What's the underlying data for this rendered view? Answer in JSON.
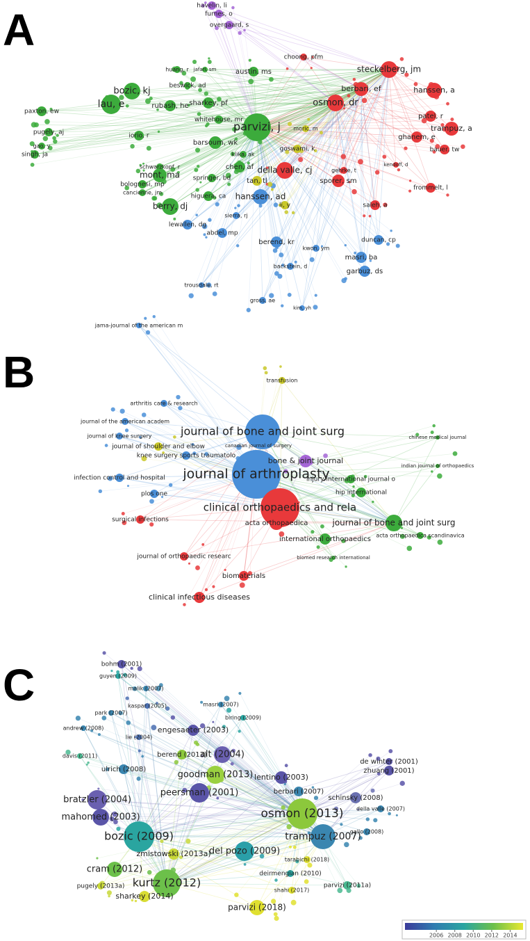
{
  "panels": [
    {
      "letter": "A",
      "nodes": [
        {
          "label": "parvizi, j",
          "color": "#3cab3c"
        },
        {
          "label": "osmon, dr",
          "color": "#e8393b"
        },
        {
          "label": "steckelberg, jm",
          "color": "#e8393b"
        },
        {
          "label": "berbari, ef",
          "color": "#e8393b"
        },
        {
          "label": "hanssen, a",
          "color": "#e8393b"
        },
        {
          "label": "patel, r",
          "color": "#e8393b"
        },
        {
          "label": "trampuz, a",
          "color": "#e8393b"
        },
        {
          "label": "ghanem, e",
          "color": "#e8393b"
        },
        {
          "label": "bauer, tw",
          "color": "#e8393b"
        },
        {
          "label": "della valle, cj",
          "color": "#e8393b"
        },
        {
          "label": "sporer, sm",
          "color": "#e8393b"
        },
        {
          "label": "frommelt, l",
          "color": "#e8393b"
        },
        {
          "label": "saleh, a",
          "color": "#e8393b"
        },
        {
          "label": "gehrke, t",
          "color": "#e8393b"
        },
        {
          "label": "kendoff, d",
          "color": "#e8393b"
        },
        {
          "label": "choong, pfm",
          "color": "#e8393b"
        },
        {
          "label": "bozic, kj",
          "color": "#3cab3c"
        },
        {
          "label": "lau, e",
          "color": "#3cab3c"
        },
        {
          "label": "paxton, ew",
          "color": "#3cab3c"
        },
        {
          "label": "rubash, he",
          "color": "#3cab3c"
        },
        {
          "label": "sharkey, pf",
          "color": "#3cab3c"
        },
        {
          "label": "whitehouse, mr",
          "color": "#3cab3c"
        },
        {
          "label": "barsoum, wk",
          "color": "#3cab3c"
        },
        {
          "label": "mont, ma",
          "color": "#3cab3c"
        },
        {
          "label": "berry, dj",
          "color": "#3cab3c"
        },
        {
          "label": "chen, af",
          "color": "#3cab3c"
        },
        {
          "label": "springer, bd",
          "color": "#3cab3c"
        },
        {
          "label": "higuera, ca",
          "color": "#3cab3c"
        },
        {
          "label": "austin, ms",
          "color": "#3cab3c"
        },
        {
          "label": "beswick, ad",
          "color": "#3cab3c"
        },
        {
          "label": "huang, r",
          "color": "#3cab3c"
        },
        {
          "label": "iorio, r",
          "color": "#3cab3c"
        },
        {
          "label": "pugely, aj",
          "color": "#3cab3c"
        },
        {
          "label": "singh, ja",
          "color": "#3cab3c"
        },
        {
          "label": "gao, y",
          "color": "#3cab3c"
        },
        {
          "label": "bolognesi, mp",
          "color": "#3cab3c"
        },
        {
          "label": "schwarzkopf, r",
          "color": "#3cab3c"
        },
        {
          "label": "cancienne, jm",
          "color": "#3cab3c"
        },
        {
          "label": "jafari, sm",
          "color": "#3cab3c"
        },
        {
          "label": "klika, ak",
          "color": "#3cab3c"
        },
        {
          "label": "hanssen, ad",
          "color": "#4a8fd8"
        },
        {
          "label": "lewallen, dg",
          "color": "#4a8fd8"
        },
        {
          "label": "abdel, mp",
          "color": "#4a8fd8"
        },
        {
          "label": "sierra, rj",
          "color": "#4a8fd8"
        },
        {
          "label": "berend, kr",
          "color": "#4a8fd8"
        },
        {
          "label": "duncan, cp",
          "color": "#4a8fd8"
        },
        {
          "label": "masri, ba",
          "color": "#4a8fd8"
        },
        {
          "label": "garbuz, ds",
          "color": "#4a8fd8"
        },
        {
          "label": "kwon, ym",
          "color": "#4a8fd8"
        },
        {
          "label": "backstein, d",
          "color": "#4a8fd8"
        },
        {
          "label": "trousdale, rt",
          "color": "#4a8fd8"
        },
        {
          "label": "gross, ae",
          "color": "#4a8fd8"
        },
        {
          "label": "kim, yh",
          "color": "#4a8fd8"
        },
        {
          "label": "tan, tl",
          "color": "#c9c82a"
        },
        {
          "label": "li, y",
          "color": "#c9c82a"
        },
        {
          "label": "goswami, k",
          "color": "#c9c82a"
        },
        {
          "label": "moric, m",
          "color": "#c9c82a"
        },
        {
          "label": "havelin, li",
          "color": "#a566d6"
        },
        {
          "label": "furnes, o",
          "color": "#a566d6"
        },
        {
          "label": "overgaard, s",
          "color": "#a566d6"
        }
      ]
    },
    {
      "letter": "B",
      "nodes": [
        {
          "label": "journal of arthroplasty",
          "color": "#4a8fd8"
        },
        {
          "label": "journal of bone and joint surg",
          "color": "#4a8fd8"
        },
        {
          "label": "clinical orthopaedics and rela",
          "color": "#e8393b"
        },
        {
          "label": "journal of bone and joint surg",
          "color": "#3cab3c"
        },
        {
          "label": "bone & joint journal",
          "color": "#a566d6"
        },
        {
          "label": "international orthopaedics",
          "color": "#3cab3c"
        },
        {
          "label": "hip international",
          "color": "#3cab3c"
        },
        {
          "label": "acta orthopaedica",
          "color": "#e8393b"
        },
        {
          "label": "biomaterials",
          "color": "#e8393b"
        },
        {
          "label": "clinical infectious diseases",
          "color": "#e8393b"
        },
        {
          "label": "journal of orthopaedic researc",
          "color": "#e8393b"
        },
        {
          "label": "infection control and hospital",
          "color": "#4a8fd8"
        },
        {
          "label": "surgical infections",
          "color": "#e8393b"
        },
        {
          "label": "journal of shoulder and elbow",
          "color": "#c9c82a"
        },
        {
          "label": "knee surgery sports traumatolo",
          "color": "#4a8fd8"
        },
        {
          "label": "journal of knee surgery",
          "color": "#4a8fd8"
        },
        {
          "label": "journal of the american academ",
          "color": "#4a8fd8"
        },
        {
          "label": "arthritis care & research",
          "color": "#4a8fd8"
        },
        {
          "label": "transfusion",
          "color": "#c9c82a"
        },
        {
          "label": "jama-journal of the american m",
          "color": "#4a8fd8"
        },
        {
          "label": "injury-international journal o",
          "color": "#3cab3c"
        },
        {
          "label": "acta orthopaedica scandinavica",
          "color": "#3cab3c"
        },
        {
          "label": "plos one",
          "color": "#4a8fd8"
        },
        {
          "label": "canadian journal of surgery",
          "color": "#4a8fd8"
        },
        {
          "label": "indian journal of orthopaedics",
          "color": "#3cab3c"
        },
        {
          "label": "chinese medical journal",
          "color": "#3cab3c"
        },
        {
          "label": "biomed research international",
          "color": "#3cab3c"
        }
      ]
    },
    {
      "letter": "C",
      "nodes": [
        {
          "label": "osmon (2013)",
          "color": "#8cc83c"
        },
        {
          "label": "bozic (2009)",
          "color": "#2aa5a0"
        },
        {
          "label": "kurtz (2012)",
          "color": "#6cc04a"
        },
        {
          "label": "trampuz (2007)",
          "color": "#3a86b0"
        },
        {
          "label": "del pozo (2009)",
          "color": "#2a9fa8"
        },
        {
          "label": "peersman (2001)",
          "color": "#5a55a8"
        },
        {
          "label": "goodman (2013)",
          "color": "#9ad040"
        },
        {
          "label": "alt (2004)",
          "color": "#6a60b0"
        },
        {
          "label": "bratzler (2004)",
          "color": "#6a60b0"
        },
        {
          "label": "mahomed (2003)",
          "color": "#5a55a8"
        },
        {
          "label": "cram (2012)",
          "color": "#6cc04a"
        },
        {
          "label": "parvizi (2018)",
          "color": "#e0e030"
        },
        {
          "label": "lentino (2003)",
          "color": "#5a55a8"
        },
        {
          "label": "engesaeter (2003)",
          "color": "#5a55a8"
        },
        {
          "label": "zmistowski (2013a)",
          "color": "#c8d838"
        },
        {
          "label": "sharkey (2014)",
          "color": "#d8dc34"
        },
        {
          "label": "schinsky (2008)",
          "color": "#6a70b0"
        },
        {
          "label": "zhuang (2001)",
          "color": "#5a55a8"
        },
        {
          "label": "de winter (2001)",
          "color": "#5a55a8"
        },
        {
          "label": "berbari (2007)",
          "color": "#3a86b0"
        },
        {
          "label": "berend (2013)",
          "color": "#8cc83c"
        },
        {
          "label": "ulrich (2008)",
          "color": "#3a86b0"
        },
        {
          "label": "bohm (2001)",
          "color": "#5a55a8"
        },
        {
          "label": "park (2007)",
          "color": "#3a86b0"
        },
        {
          "label": "andrew (2008)",
          "color": "#3a86b0"
        },
        {
          "label": "davis (2011)",
          "color": "#4ab890"
        },
        {
          "label": "kaspar (2005)",
          "color": "#4a6fb0"
        },
        {
          "label": "masri (2007)",
          "color": "#3a86b0"
        },
        {
          "label": "biring (2009)",
          "color": "#2aa5a0"
        },
        {
          "label": "della valle (2007)",
          "color": "#3a86b0"
        },
        {
          "label": "gallo (2008)",
          "color": "#3a86b0"
        },
        {
          "label": "parvizi (2011a)",
          "color": "#4ab890"
        },
        {
          "label": "pugely (2013a)",
          "color": "#c8d838"
        },
        {
          "label": "deirmengian (2010)",
          "color": "#2aa5a0"
        },
        {
          "label": "tarabichi (2018)",
          "color": "#e0e030"
        },
        {
          "label": "shahi (2017)",
          "color": "#e0e030"
        },
        {
          "label": "lie (2004)",
          "color": "#4a6fb0"
        },
        {
          "label": "malik (2007)",
          "color": "#3a86b0"
        },
        {
          "label": "guyen (2009)",
          "color": "#2aa5a0"
        }
      ]
    }
  ],
  "colorbar": {
    "range": [
      2002.6,
      2015.4
    ],
    "ticks": [
      2006,
      2008,
      2010,
      2012,
      2014
    ],
    "colors": [
      "#3b3b9a",
      "#2f7cb0",
      "#2aa5a0",
      "#6cc04a",
      "#e8e830"
    ]
  }
}
